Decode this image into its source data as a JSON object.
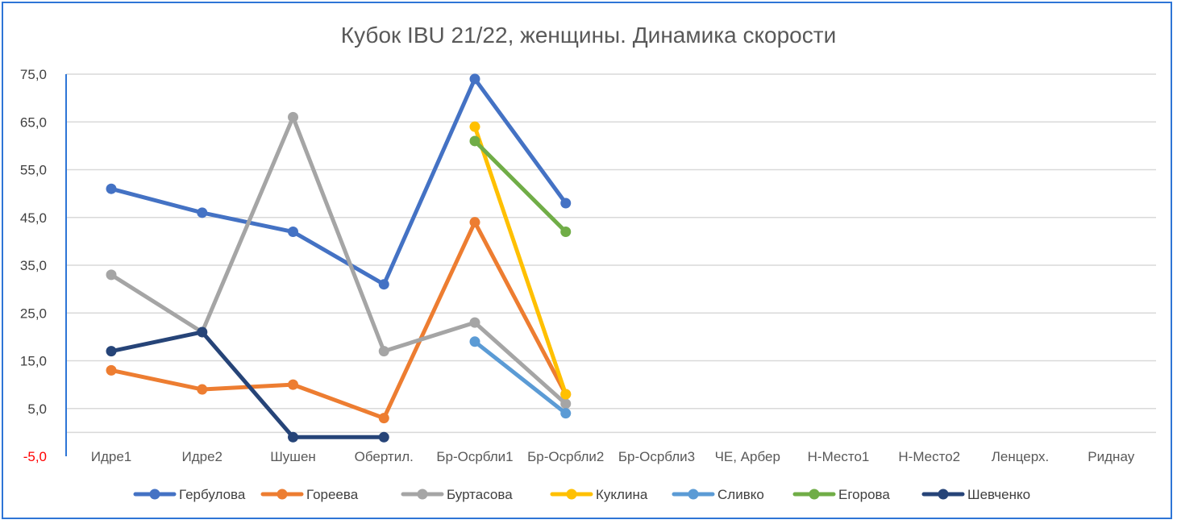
{
  "chart_data": {
    "type": "line",
    "title": "Кубок IBU 21/22, женщины. Динамика скорости",
    "xlabel": "",
    "ylabel": "",
    "ylim": [
      -5,
      75
    ],
    "yticks": [
      {
        "value": 75,
        "label": "75,0"
      },
      {
        "value": 65,
        "label": "65,0"
      },
      {
        "value": 55,
        "label": "55,0"
      },
      {
        "value": 45,
        "label": "45,0"
      },
      {
        "value": 35,
        "label": "35,0"
      },
      {
        "value": 25,
        "label": "25,0"
      },
      {
        "value": 15,
        "label": "15,0"
      },
      {
        "value": 5,
        "label": "5,0"
      },
      {
        "value": -5,
        "label": "-5,0"
      }
    ],
    "categories": [
      "Идре1",
      "Идре2",
      "Шушен",
      "Обертил.",
      "Бр-Осрбли1",
      "Бр-Осрбли2",
      "Бр-Осрбли3",
      "ЧЕ, Арбер",
      "Н-Место1",
      "Н-Место2",
      "Ленцерх.",
      "Риднау"
    ],
    "grid": true,
    "legend_position": "bottom",
    "series": [
      {
        "name": "Гербулова",
        "color": "#4472c4",
        "values": [
          51,
          46,
          42,
          31,
          74,
          48,
          null,
          null,
          null,
          null,
          null,
          null
        ]
      },
      {
        "name": "Гореева",
        "color": "#ed7d31",
        "values": [
          13,
          9,
          10,
          3,
          44,
          8,
          null,
          null,
          null,
          null,
          null,
          null
        ]
      },
      {
        "name": "Буртасова",
        "color": "#a5a5a5",
        "values": [
          33,
          21,
          66,
          17,
          23,
          6,
          null,
          null,
          null,
          null,
          null,
          null
        ]
      },
      {
        "name": "Куклина",
        "color": "#ffc000",
        "values": [
          null,
          null,
          null,
          null,
          64,
          8,
          null,
          null,
          null,
          null,
          null,
          null
        ]
      },
      {
        "name": "Сливко",
        "color": "#5b9bd5",
        "values": [
          null,
          null,
          null,
          null,
          19,
          4,
          null,
          null,
          null,
          null,
          null,
          null
        ]
      },
      {
        "name": "Егорова",
        "color": "#70ad47",
        "values": [
          null,
          null,
          null,
          null,
          61,
          42,
          null,
          null,
          null,
          null,
          null,
          null
        ]
      },
      {
        "name": "Шевченко",
        "color": "#264478",
        "values": [
          17,
          21,
          -1,
          -1,
          null,
          null,
          null,
          null,
          null,
          null,
          null,
          null
        ]
      }
    ]
  }
}
